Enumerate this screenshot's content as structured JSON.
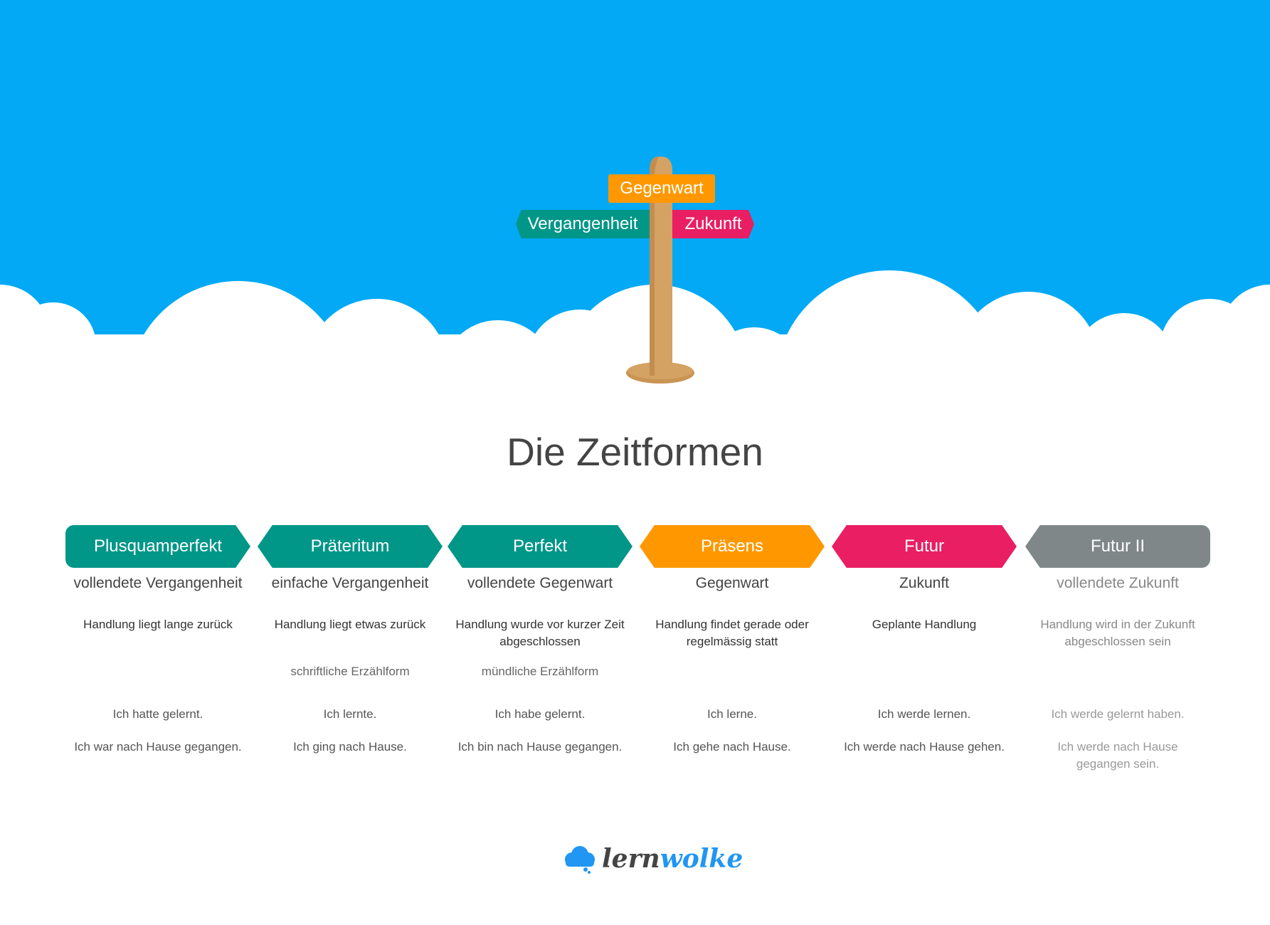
{
  "signpost": {
    "present": "Gegenwart",
    "past": "Vergangenheit",
    "future": "Zukunft"
  },
  "title": "Die Zeitformen",
  "colors": {
    "sky": "#03a9f4",
    "teal": "#009688",
    "orange": "#ff9800",
    "pink": "#e91e63",
    "gray": "#7f8789",
    "wood": "#d4a263",
    "logo_blue": "#2196f3",
    "logo_dark": "#444444"
  },
  "tenses": [
    {
      "name": "Plusquamperfekt",
      "subtitle": "vollendete Vergangenheit",
      "description": "Handlung liegt lange zurück",
      "form": "",
      "example1": "Ich hatte gelernt.",
      "example2": "Ich war nach Hause gegangen."
    },
    {
      "name": "Präteritum",
      "subtitle": "einfache Vergangenheit",
      "description": "Handlung liegt etwas zurück",
      "form": "schriftliche Erzählform",
      "example1": "Ich lernte.",
      "example2": "Ich ging nach Hause."
    },
    {
      "name": "Perfekt",
      "subtitle": "vollendete Gegenwart",
      "description": "Handlung wurde vor kurzer Zeit abgeschlossen",
      "form": "mündliche Erzählform",
      "example1": "Ich habe gelernt.",
      "example2": "Ich bin nach Hause gegangen."
    },
    {
      "name": "Präsens",
      "subtitle": "Gegenwart",
      "description": "Handlung findet gerade oder regelmässig statt",
      "form": "",
      "example1": "Ich lerne.",
      "example2": "Ich gehe nach Hause."
    },
    {
      "name": "Futur",
      "subtitle": "Zukunft",
      "description": "Geplante Handlung",
      "form": "",
      "example1": "Ich werde lernen.",
      "example2": "Ich werde nach Hause gehen."
    },
    {
      "name": "Futur II",
      "subtitle": "vollendete Zukunft",
      "description": "Handlung wird in der Zukunft abgeschlossen sein",
      "form": "",
      "example1": "Ich werde gelernt haben.",
      "example2": "Ich werde nach Hause gegangen sein."
    }
  ],
  "logo": {
    "part1": "lern",
    "part2": "wolke"
  }
}
